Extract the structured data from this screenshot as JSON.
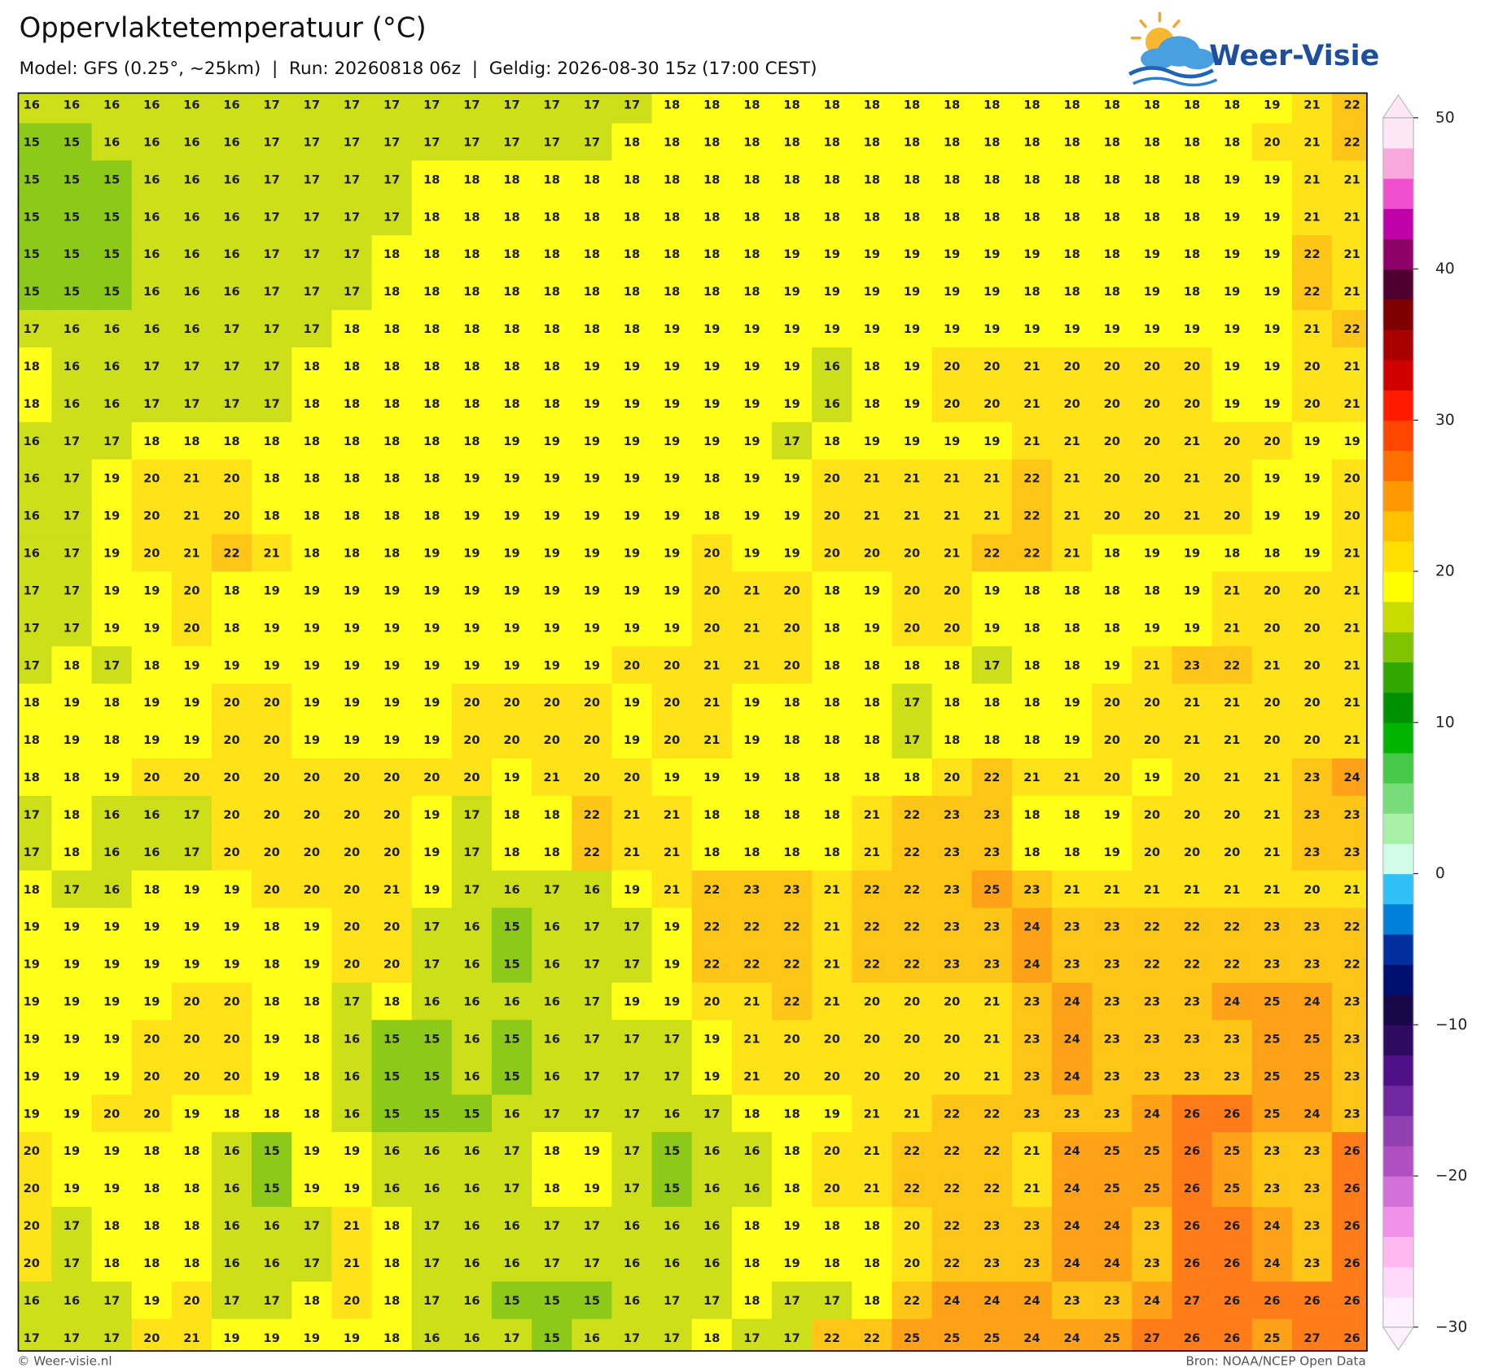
{
  "header": {
    "title": "Oppervlaktetemperatuur (°C)",
    "subtitle": "Model: GFS (0.25°, ~25km)  |  Run: 20260818 06z  |  Geldig: 2026-08-30 15z (17:00 CEST)",
    "logo": "Weer-Visie"
  },
  "map": {
    "grid": [
      [
        16,
        16,
        16,
        16,
        16,
        16,
        17,
        17,
        17,
        17,
        17,
        17,
        17,
        17,
        17,
        17,
        18,
        18,
        18,
        18,
        18,
        18,
        18,
        18,
        18,
        18,
        18,
        18,
        18,
        18,
        18,
        19,
        21,
        22
      ],
      [
        15,
        15,
        16,
        16,
        16,
        16,
        17,
        17,
        17,
        17,
        17,
        17,
        17,
        17,
        17,
        18,
        18,
        18,
        18,
        18,
        18,
        18,
        18,
        18,
        18,
        18,
        18,
        18,
        18,
        18,
        18,
        20,
        21,
        22
      ],
      [
        15,
        15,
        15,
        16,
        16,
        16,
        17,
        17,
        17,
        17,
        18,
        18,
        18,
        18,
        18,
        18,
        18,
        18,
        18,
        18,
        18,
        18,
        18,
        18,
        18,
        18,
        18,
        18,
        18,
        18,
        19,
        19,
        21,
        21
      ],
      [
        15,
        15,
        15,
        16,
        16,
        16,
        17,
        17,
        17,
        17,
        18,
        18,
        18,
        18,
        18,
        18,
        18,
        18,
        18,
        18,
        18,
        18,
        18,
        18,
        18,
        18,
        18,
        18,
        18,
        18,
        19,
        19,
        21,
        21
      ],
      [
        15,
        15,
        15,
        16,
        16,
        16,
        17,
        17,
        17,
        18,
        18,
        18,
        18,
        18,
        18,
        18,
        18,
        18,
        18,
        19,
        19,
        19,
        19,
        19,
        19,
        19,
        18,
        18,
        19,
        18,
        19,
        19,
        22,
        21
      ],
      [
        15,
        15,
        15,
        16,
        16,
        16,
        17,
        17,
        17,
        18,
        18,
        18,
        18,
        18,
        18,
        18,
        18,
        18,
        18,
        19,
        19,
        19,
        19,
        19,
        19,
        18,
        18,
        18,
        19,
        18,
        19,
        19,
        22,
        21
      ],
      [
        17,
        16,
        16,
        16,
        16,
        17,
        17,
        17,
        18,
        18,
        18,
        18,
        18,
        18,
        18,
        18,
        19,
        19,
        19,
        19,
        19,
        19,
        19,
        19,
        19,
        19,
        19,
        19,
        19,
        19,
        19,
        19,
        21,
        22
      ],
      [
        18,
        16,
        16,
        17,
        17,
        17,
        17,
        18,
        18,
        18,
        18,
        18,
        18,
        18,
        19,
        19,
        19,
        19,
        19,
        19,
        16,
        18,
        19,
        20,
        20,
        21,
        20,
        20,
        20,
        20,
        19,
        19,
        20,
        21
      ],
      [
        18,
        16,
        16,
        17,
        17,
        17,
        17,
        18,
        18,
        18,
        18,
        18,
        18,
        18,
        19,
        19,
        19,
        19,
        19,
        19,
        16,
        18,
        19,
        20,
        20,
        21,
        20,
        20,
        20,
        20,
        19,
        19,
        20,
        21
      ],
      [
        16,
        17,
        17,
        18,
        18,
        18,
        18,
        18,
        18,
        18,
        18,
        18,
        19,
        19,
        19,
        19,
        19,
        19,
        19,
        17,
        18,
        19,
        19,
        19,
        19,
        21,
        21,
        20,
        20,
        21,
        20,
        20,
        19,
        19
      ],
      [
        16,
        17,
        19,
        20,
        21,
        20,
        18,
        18,
        18,
        18,
        18,
        19,
        19,
        19,
        19,
        19,
        19,
        18,
        19,
        19,
        20,
        21,
        21,
        21,
        21,
        22,
        21,
        20,
        20,
        21,
        20,
        19,
        19,
        20
      ],
      [
        16,
        17,
        19,
        20,
        21,
        20,
        18,
        18,
        18,
        18,
        18,
        19,
        19,
        19,
        19,
        19,
        19,
        18,
        19,
        19,
        20,
        21,
        21,
        21,
        21,
        22,
        21,
        20,
        20,
        21,
        20,
        19,
        19,
        20
      ],
      [
        16,
        17,
        19,
        20,
        21,
        22,
        21,
        18,
        18,
        18,
        19,
        19,
        19,
        19,
        19,
        19,
        19,
        20,
        19,
        19,
        20,
        20,
        20,
        21,
        22,
        22,
        21,
        18,
        19,
        19,
        18,
        18,
        19,
        21
      ],
      [
        17,
        17,
        19,
        19,
        20,
        18,
        19,
        19,
        19,
        19,
        19,
        19,
        19,
        19,
        19,
        19,
        19,
        20,
        21,
        20,
        18,
        19,
        20,
        20,
        19,
        18,
        18,
        18,
        18,
        19,
        21,
        20,
        20,
        21
      ],
      [
        17,
        17,
        19,
        19,
        20,
        18,
        19,
        19,
        19,
        19,
        19,
        19,
        19,
        19,
        19,
        19,
        19,
        20,
        21,
        20,
        18,
        19,
        20,
        20,
        19,
        18,
        18,
        18,
        19,
        19,
        21,
        20,
        20,
        21
      ],
      [
        17,
        18,
        17,
        18,
        19,
        19,
        19,
        19,
        19,
        19,
        19,
        19,
        19,
        19,
        19,
        20,
        20,
        21,
        21,
        20,
        18,
        18,
        18,
        18,
        17,
        18,
        18,
        19,
        21,
        23,
        22,
        21,
        20,
        21
      ],
      [
        18,
        19,
        18,
        19,
        19,
        20,
        20,
        19,
        19,
        19,
        19,
        20,
        20,
        20,
        20,
        19,
        20,
        21,
        19,
        18,
        18,
        18,
        17,
        18,
        18,
        18,
        19,
        20,
        20,
        21,
        21,
        20,
        20,
        21
      ],
      [
        18,
        19,
        18,
        19,
        19,
        20,
        20,
        19,
        19,
        19,
        19,
        20,
        20,
        20,
        20,
        19,
        20,
        21,
        19,
        18,
        18,
        18,
        17,
        18,
        18,
        18,
        19,
        20,
        20,
        21,
        21,
        20,
        20,
        21
      ],
      [
        18,
        18,
        19,
        20,
        20,
        20,
        20,
        20,
        20,
        20,
        20,
        20,
        19,
        21,
        20,
        20,
        19,
        19,
        19,
        18,
        18,
        18,
        18,
        20,
        22,
        21,
        21,
        20,
        19,
        20,
        21,
        21,
        23,
        24
      ],
      [
        17,
        18,
        16,
        16,
        17,
        20,
        20,
        20,
        20,
        20,
        19,
        17,
        18,
        18,
        22,
        21,
        21,
        18,
        18,
        18,
        18,
        21,
        22,
        23,
        23,
        18,
        18,
        19,
        20,
        20,
        20,
        21,
        23,
        23
      ],
      [
        17,
        18,
        16,
        16,
        17,
        20,
        20,
        20,
        20,
        20,
        19,
        17,
        18,
        18,
        22,
        21,
        21,
        18,
        18,
        18,
        18,
        21,
        22,
        23,
        23,
        18,
        18,
        19,
        20,
        20,
        20,
        21,
        23,
        23
      ],
      [
        18,
        17,
        16,
        18,
        19,
        19,
        20,
        20,
        20,
        21,
        19,
        17,
        16,
        17,
        16,
        19,
        21,
        22,
        23,
        23,
        21,
        22,
        22,
        23,
        25,
        23,
        21,
        21,
        21,
        21,
        21,
        21,
        20,
        21
      ],
      [
        19,
        19,
        19,
        19,
        19,
        19,
        18,
        19,
        20,
        20,
        17,
        16,
        15,
        16,
        17,
        17,
        19,
        22,
        22,
        22,
        21,
        22,
        22,
        23,
        23,
        24,
        23,
        23,
        22,
        22,
        22,
        23,
        23,
        22
      ],
      [
        19,
        19,
        19,
        19,
        19,
        19,
        18,
        19,
        20,
        20,
        17,
        16,
        15,
        16,
        17,
        17,
        19,
        22,
        22,
        22,
        21,
        22,
        22,
        23,
        23,
        24,
        23,
        23,
        22,
        22,
        22,
        23,
        23,
        22
      ],
      [
        19,
        19,
        19,
        19,
        20,
        20,
        18,
        18,
        17,
        18,
        16,
        16,
        16,
        16,
        17,
        19,
        19,
        20,
        21,
        22,
        21,
        20,
        20,
        20,
        21,
        23,
        24,
        23,
        23,
        23,
        24,
        25,
        24,
        23
      ],
      [
        19,
        19,
        19,
        20,
        20,
        20,
        19,
        18,
        16,
        15,
        15,
        16,
        15,
        16,
        17,
        17,
        17,
        19,
        21,
        20,
        20,
        20,
        20,
        20,
        21,
        23,
        24,
        23,
        23,
        23,
        23,
        25,
        25,
        23
      ],
      [
        19,
        19,
        19,
        20,
        20,
        20,
        19,
        18,
        16,
        15,
        15,
        16,
        15,
        16,
        17,
        17,
        17,
        19,
        21,
        20,
        20,
        20,
        20,
        20,
        21,
        23,
        24,
        23,
        23,
        23,
        23,
        25,
        25,
        23
      ],
      [
        19,
        19,
        20,
        20,
        19,
        18,
        18,
        18,
        16,
        15,
        15,
        15,
        16,
        17,
        17,
        17,
        16,
        17,
        18,
        18,
        19,
        21,
        21,
        22,
        22,
        23,
        23,
        23,
        24,
        26,
        26,
        25,
        24,
        23
      ],
      [
        20,
        19,
        19,
        18,
        18,
        16,
        15,
        19,
        19,
        16,
        16,
        16,
        17,
        18,
        19,
        17,
        15,
        16,
        16,
        18,
        20,
        21,
        22,
        22,
        22,
        21,
        24,
        25,
        25,
        26,
        25,
        23,
        23,
        26
      ],
      [
        20,
        19,
        19,
        18,
        18,
        16,
        15,
        19,
        19,
        16,
        16,
        16,
        17,
        18,
        19,
        17,
        15,
        16,
        16,
        18,
        20,
        21,
        22,
        22,
        22,
        21,
        24,
        25,
        25,
        26,
        25,
        23,
        23,
        26
      ],
      [
        20,
        17,
        18,
        18,
        18,
        16,
        16,
        17,
        21,
        18,
        17,
        16,
        16,
        17,
        17,
        16,
        16,
        16,
        18,
        19,
        18,
        18,
        20,
        22,
        23,
        23,
        24,
        24,
        23,
        26,
        26,
        24,
        23,
        26
      ],
      [
        20,
        17,
        18,
        18,
        18,
        16,
        16,
        17,
        21,
        18,
        17,
        16,
        16,
        17,
        17,
        16,
        16,
        16,
        18,
        19,
        18,
        18,
        20,
        22,
        23,
        23,
        24,
        24,
        23,
        26,
        26,
        24,
        23,
        26
      ],
      [
        16,
        16,
        17,
        19,
        20,
        17,
        17,
        18,
        20,
        18,
        17,
        16,
        15,
        15,
        15,
        16,
        17,
        17,
        18,
        17,
        17,
        18,
        22,
        24,
        24,
        24,
        23,
        23,
        24,
        27,
        26,
        26,
        26,
        26
      ],
      [
        17,
        17,
        17,
        20,
        21,
        19,
        19,
        19,
        19,
        18,
        16,
        16,
        17,
        15,
        16,
        17,
        17,
        18,
        17,
        17,
        22,
        22,
        25,
        25,
        25,
        24,
        24,
        25,
        27,
        26,
        26,
        25,
        27,
        26
      ]
    ]
  },
  "colorbar": {
    "lim": [
      -30,
      50
    ],
    "ticks": [
      {
        "value": -30,
        "label": "−30"
      },
      {
        "value": -20,
        "label": "−20"
      },
      {
        "value": -10,
        "label": "−10"
      },
      0,
      10,
      20,
      30,
      40,
      50
    ],
    "colors": [
      "#fff0ff",
      "#ffd8fa",
      "#ffb8f0",
      "#f090e8",
      "#d070d8",
      "#b050c0",
      "#9040b0",
      "#7028a0",
      "#501088",
      "#300a60",
      "#180848",
      "#001070",
      "#0030a0",
      "#0080d8",
      "#30c0f8",
      "#d0fce8",
      "#a8f0a8",
      "#78dc78",
      "#48c848",
      "#00b400",
      "#009000",
      "#30a800",
      "#80c400",
      "#c8dc00",
      "#ffff00",
      "#ffe000",
      "#ffc000",
      "#ff9800",
      "#ff6e00",
      "#ff4600",
      "#ff1a00",
      "#d00000",
      "#a80000",
      "#800000",
      "#500030",
      "#8c0068",
      "#c000a8",
      "#f050d0",
      "#f8a8dc",
      "#fde6f6"
    ]
  },
  "footer": {
    "left": "© Weer-visie.nl",
    "right": "Bron: NOAA/NCEP Open Data"
  }
}
